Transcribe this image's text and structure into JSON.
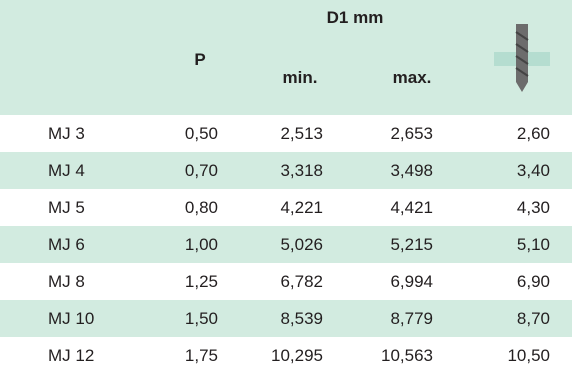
{
  "table": {
    "header": {
      "group": "D1 mm",
      "p": "P",
      "min": "min.",
      "max": "max."
    },
    "rows": [
      [
        "MJ 3",
        "0,50",
        "2,513",
        "2,653",
        "2,60"
      ],
      [
        "MJ 4",
        "0,70",
        "3,318",
        "3,498",
        "3,40"
      ],
      [
        "MJ 5",
        "0,80",
        "4,221",
        "4,421",
        "4,30"
      ],
      [
        "MJ 6",
        "1,00",
        "5,026",
        "5,215",
        "5,10"
      ],
      [
        "MJ 8",
        "1,25",
        "6,782",
        "6,994",
        "6,90"
      ],
      [
        "MJ 10",
        "1,50",
        "8,539",
        "8,779",
        "8,70"
      ],
      [
        "MJ 12",
        "1,75",
        "10,295",
        "10,563",
        "10,50"
      ]
    ]
  }
}
